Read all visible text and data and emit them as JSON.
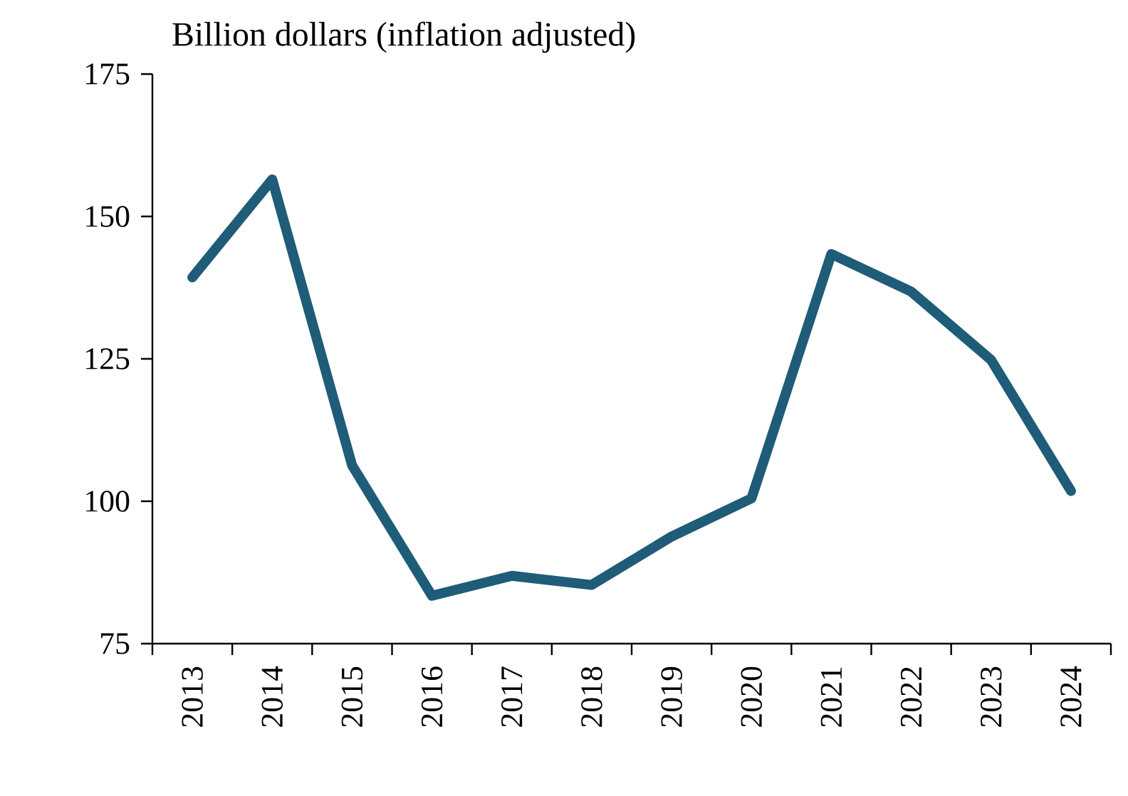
{
  "chart_data": {
    "type": "line",
    "title": "Billion dollars (inflation adjusted)",
    "categories": [
      "2013",
      "2014",
      "2015",
      "2016",
      "2017",
      "2018",
      "2019",
      "2020",
      "2021",
      "2022",
      "2023",
      "2024"
    ],
    "series": [
      {
        "color": "#1f5c78",
        "values": [
          139.3,
          156.5,
          106.3,
          83.4,
          86.9,
          85.3,
          93.8,
          100.5,
          143.4,
          136.8,
          124.8,
          101.8
        ]
      }
    ],
    "ylim": [
      75,
      175
    ],
    "yticks": [
      75,
      100,
      125,
      150,
      175
    ]
  }
}
